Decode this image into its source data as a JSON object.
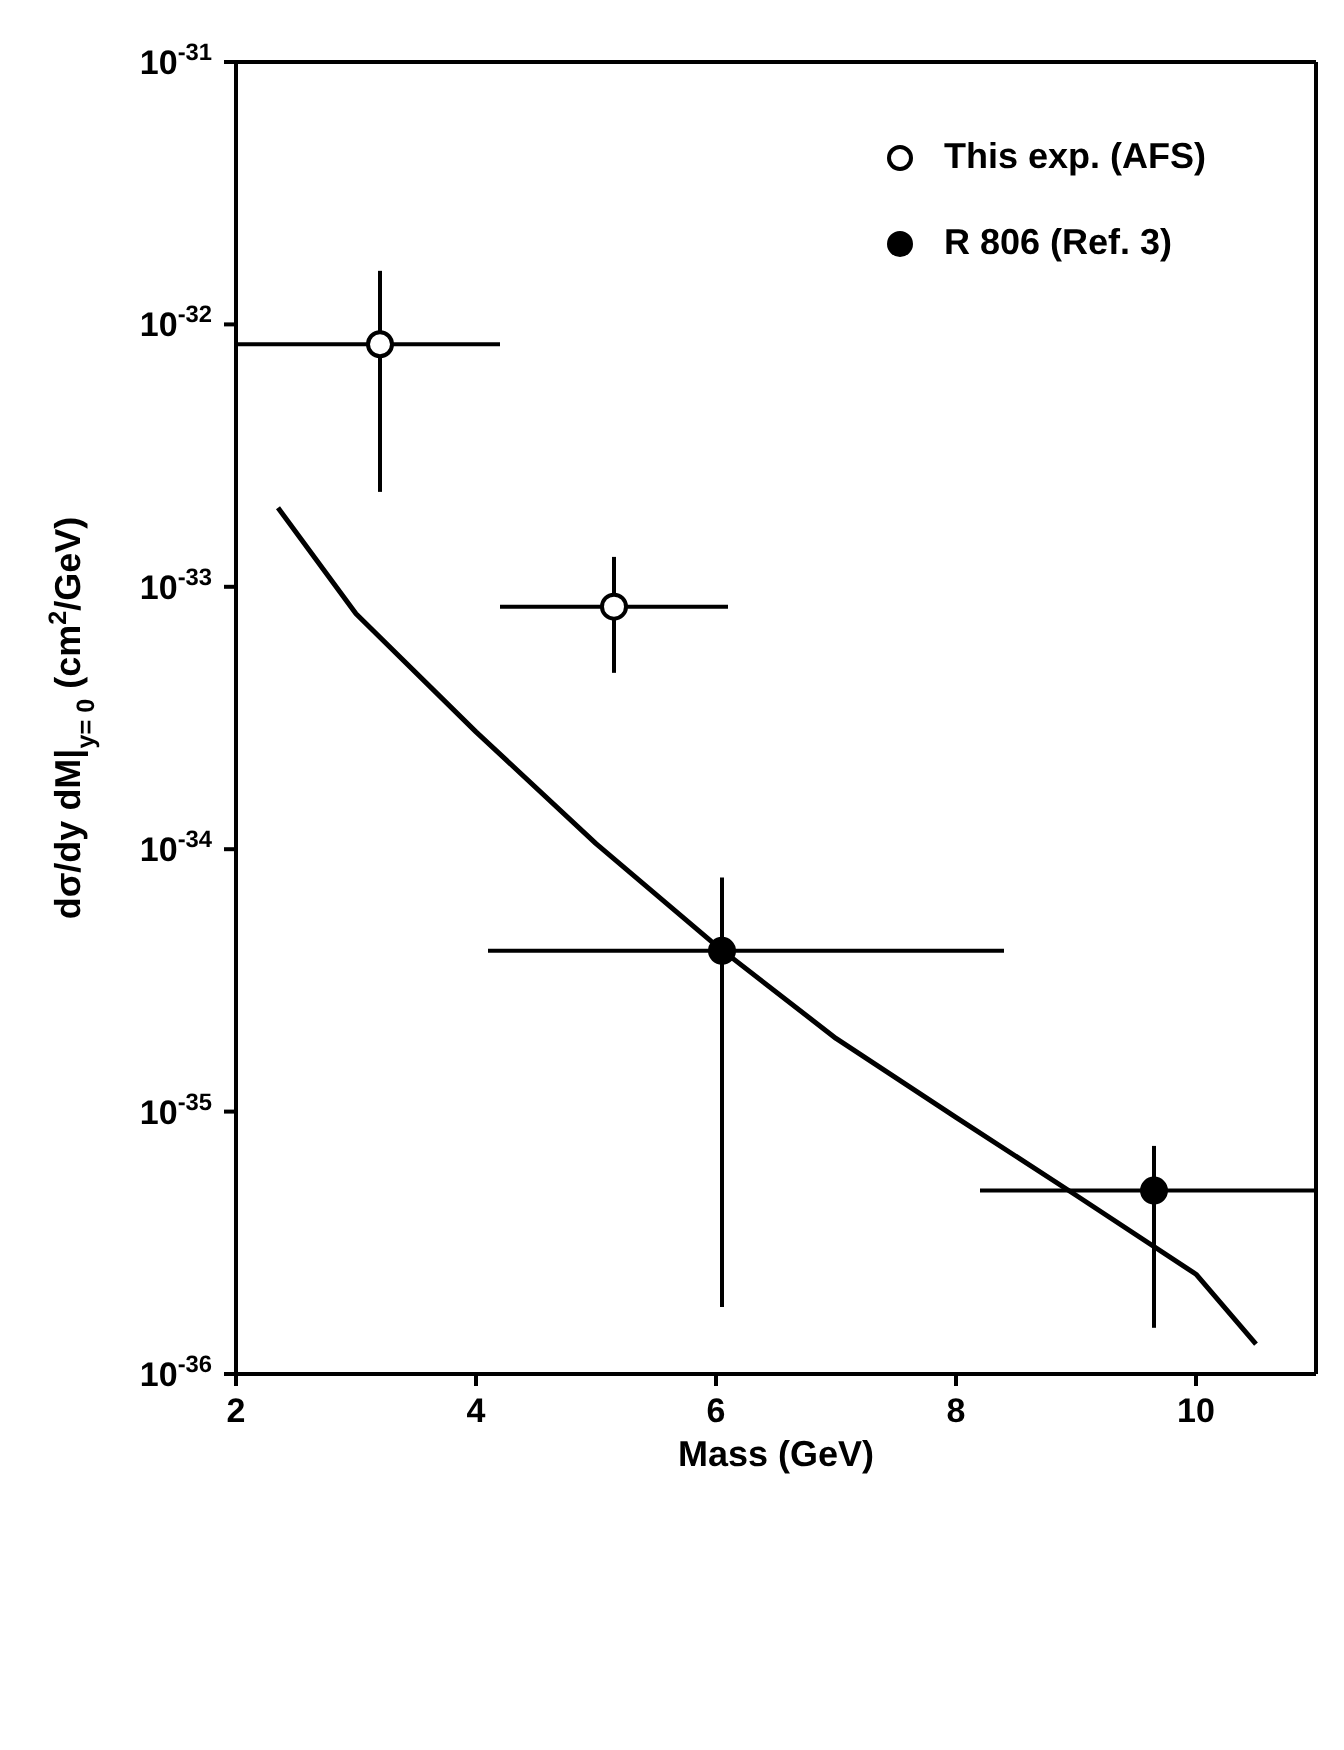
{
  "chart_data": {
    "type": "scatter",
    "xlabel": "Mass (GeV)",
    "ylabel": "dσ/dy dM|$_{y= 0}$   (cm$^{2}$/GeV)",
    "log": "y",
    "xlim": [
      2,
      11
    ],
    "xticks": [
      2,
      4,
      6,
      8,
      10
    ],
    "ylim": [
      1e-36,
      1e-31
    ],
    "yticks": [
      {
        "value": 1e-36,
        "label": "10$^{-36}$"
      },
      {
        "value": 1e-35,
        "label": "10$^{-35}$"
      },
      {
        "value": 1e-34,
        "label": "10$^{-34}$"
      },
      {
        "value": 1e-33,
        "label": "10$^{-33}$"
      },
      {
        "value": 1e-32,
        "label": "10$^{-32}$"
      },
      {
        "value": 1e-31,
        "label": "10$^{-31}$"
      }
    ],
    "legend": "top right",
    "series": [
      {
        "name": "This exp. (AFS)",
        "marker": "circle",
        "color": "#ffffff",
        "x": [
          3.2,
          5.15
        ],
        "values": [
          8.4e-33,
          8.4e-34
        ],
        "errors": [
          [
            2.3e-33,
            1.6e-32
          ],
          [
            4.7e-34,
            1.3e-33
          ]
        ],
        "xerrors": [
          [
            2.0,
            4.2
          ],
          [
            4.2,
            6.1
          ]
        ]
      },
      {
        "name": "R 806 (Ref. 3)",
        "marker": "circle",
        "color": "#000000",
        "x": [
          6.05,
          9.65
        ],
        "values": [
          4.1e-35,
          5e-36
        ],
        "errors": [
          [
            1.8e-36,
            7.8e-35
          ],
          [
            1.5e-36,
            7.4e-36
          ]
        ],
        "xerrors": [
          [
            4.1,
            8.4
          ],
          [
            8.2,
            11
          ]
        ]
      },
      {
        "type": "line",
        "marker": "none",
        "line_style": "solid",
        "color": "#000000",
        "x": [
          2.35,
          3,
          4,
          5,
          6,
          7,
          8,
          9,
          10,
          10.5
        ],
        "values": [
          2e-33,
          7.9e-34,
          2.8e-34,
          1.05e-34,
          4.3e-35,
          1.9e-35,
          9.5e-36,
          4.8e-36,
          2.4e-36,
          1.3e-36
        ]
      }
    ]
  }
}
